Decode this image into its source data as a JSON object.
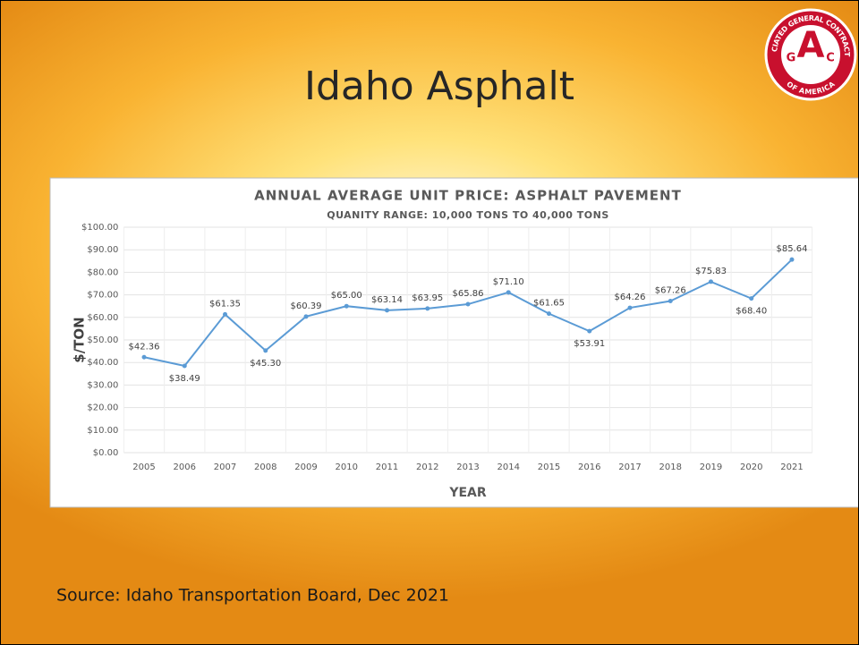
{
  "slide": {
    "title": "Idaho Asphalt",
    "source": "Source: Idaho Transportation Board, Dec 2021"
  },
  "logo": {
    "ring_top": "ASSOCIATED GENERAL CONTRACTORS",
    "ring_bottom": "OF AMERICA",
    "letters": [
      "A",
      "G",
      "C"
    ]
  },
  "chart_data": {
    "type": "line",
    "title": "ANNUAL AVERAGE UNIT PRICE: ASPHALT PAVEMENT",
    "subtitle": "QUANITY RANGE: 10,000 TONS TO 40,000 TONS",
    "x_label": "YEAR",
    "y_label": "$/TON",
    "categories": [
      "2005",
      "2006",
      "2007",
      "2008",
      "2009",
      "2010",
      "2011",
      "2012",
      "2013",
      "2014",
      "2015",
      "2016",
      "2017",
      "2018",
      "2019",
      "2020",
      "2021"
    ],
    "values": [
      42.36,
      38.49,
      61.35,
      45.3,
      60.39,
      65.0,
      63.14,
      63.95,
      65.86,
      71.1,
      61.65,
      53.91,
      64.26,
      67.26,
      75.83,
      68.4,
      85.64
    ],
    "value_labels": [
      "$42.36",
      "$38.49",
      "$61.35",
      "$45.30",
      "$60.39",
      "$65.00",
      "$63.14",
      "$63.95",
      "$65.86",
      "$71.10",
      "$61.65",
      "$53.91",
      "$64.26",
      "$67.26",
      "$75.83",
      "$68.40",
      "$85.64"
    ],
    "color": "#5b9bd5",
    "ylim": [
      0,
      100
    ],
    "yticks": [
      {
        "value": 0,
        "label": "$0.00"
      },
      {
        "value": 10,
        "label": "$10.00"
      },
      {
        "value": 20,
        "label": "$20.00"
      },
      {
        "value": 30,
        "label": "$30.00"
      },
      {
        "value": 40,
        "label": "$40.00"
      },
      {
        "value": 50,
        "label": "$50.00"
      },
      {
        "value": 60,
        "label": "$60.00"
      },
      {
        "value": 70,
        "label": "$70.00"
      },
      {
        "value": 80,
        "label": "$80.00"
      },
      {
        "value": 90,
        "label": "$90.00"
      },
      {
        "value": 100,
        "label": "$100.00"
      }
    ],
    "grid": true
  }
}
